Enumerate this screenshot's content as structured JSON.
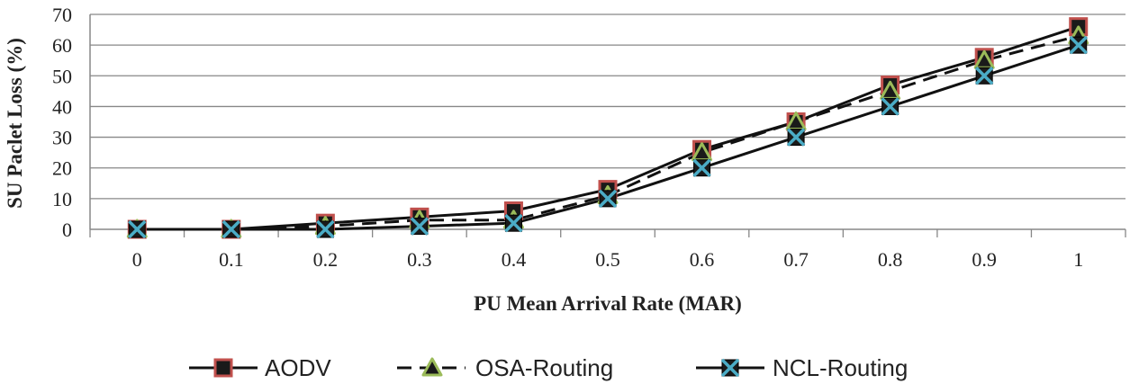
{
  "chart_data": {
    "type": "line",
    "title": "",
    "xlabel": "PU Mean Arrival Rate (MAR)",
    "ylabel": "SU Paclet Loss (%)",
    "x": [
      0,
      0.1,
      0.2,
      0.3,
      0.4,
      0.5,
      0.6,
      0.7,
      0.8,
      0.9,
      1
    ],
    "x_tick_labels": [
      "0",
      "0.1",
      "0.2",
      "0.3",
      "0.4",
      "0.5",
      "0.6",
      "0.7",
      "0.8",
      "0.9",
      "1"
    ],
    "ylim": [
      0,
      70
    ],
    "y_ticks": [
      0,
      10,
      20,
      30,
      40,
      50,
      60,
      70
    ],
    "y_tick_labels": [
      "0",
      "10",
      "20",
      "30",
      "40",
      "50",
      "60",
      "70"
    ],
    "grid": "horizontal",
    "legend_position": "bottom",
    "series": [
      {
        "name": "AODV",
        "values": [
          0,
          0,
          2,
          4,
          6,
          13,
          26,
          35,
          47,
          56,
          66
        ],
        "line_style": "solid",
        "marker": "square",
        "marker_fill": "#1a1a1a",
        "marker_edge": "#c0504d"
      },
      {
        "name": "OSA-Routing",
        "values": [
          0,
          0,
          1,
          3,
          3,
          11,
          25,
          35,
          45,
          55,
          63
        ],
        "line_style": "dashed",
        "marker": "triangle",
        "marker_fill": "#1a1a1a",
        "marker_edge": "#9bbb59"
      },
      {
        "name": "NCL-Routing",
        "values": [
          0,
          0,
          0,
          1,
          2,
          10,
          20,
          30,
          40,
          50,
          60
        ],
        "line_style": "solid",
        "marker": "x-square",
        "marker_fill": "#1a1a1a",
        "marker_edge": "#4bacc6"
      }
    ],
    "colors": {
      "line": "#111111",
      "grid": "#878787",
      "axis": "#878787"
    }
  }
}
